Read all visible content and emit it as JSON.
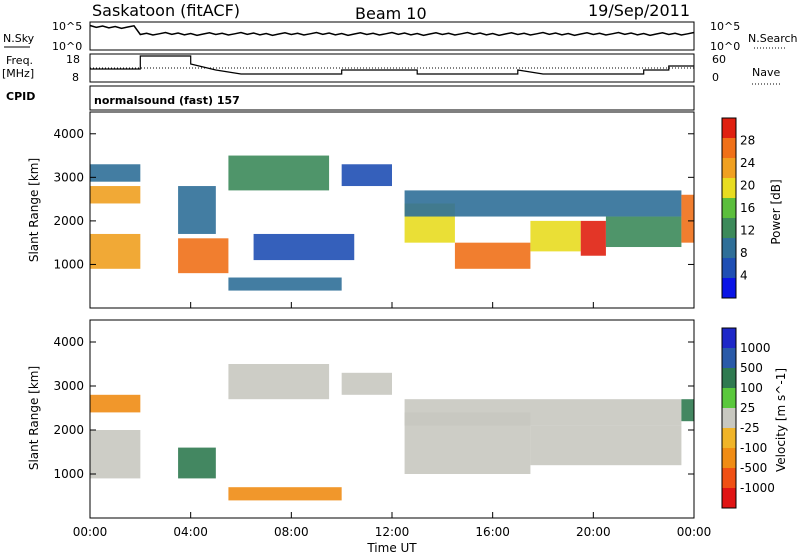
{
  "header": {
    "station": "Saskatoon (fitACF)",
    "beam": "Beam 10",
    "date": "19/Sep/2011"
  },
  "top_panels": {
    "nsky_label": "N.Sky",
    "nsky_ticks": [
      "10^5",
      "10^0"
    ],
    "nsearch_label": "N.Search",
    "nsearch_ticks": [
      "10^5",
      "10^0"
    ],
    "freq_label_1": "Freq.",
    "freq_label_2": "[MHz]",
    "freq_ticks": [
      "18",
      "8"
    ],
    "nave_label": "Nave",
    "nave_ticks": [
      "60",
      "0"
    ],
    "cpid_label": "CPID",
    "cpid_text": "normalsound (fast) 157"
  },
  "colors": {
    "power_scale": [
      "#0a14e6",
      "#1f4fb4",
      "#2f6f98",
      "#3c8a5a",
      "#5bbe3c",
      "#e8dc20",
      "#f0a020",
      "#f07018",
      "#e02010"
    ],
    "velocity_scale": [
      "#1e28c8",
      "#2a5aa8",
      "#2f7a50",
      "#5ac83c",
      "#c8c8c0",
      "#f0b428",
      "#f08c14",
      "#f05014",
      "#e01414"
    ]
  },
  "chart_data": [
    {
      "type": "heatmap",
      "name": "power",
      "xlabel": "",
      "ylabel": "Slant Range [km]",
      "ylim": [
        0,
        4500
      ],
      "yticks": [
        "1000",
        "2000",
        "3000",
        "4000"
      ],
      "colorbar_label": "Power [dB]",
      "colorbar_ticks": [
        "28",
        "24",
        "20",
        "16",
        "12",
        "8",
        "4"
      ],
      "clim": [
        0,
        32
      ],
      "regions": [
        {
          "x0": 0.0,
          "x1": 2.0,
          "y0": 900,
          "y1": 1700,
          "v": 24
        },
        {
          "x0": 0.0,
          "x1": 2.0,
          "y0": 2400,
          "y1": 2800,
          "v": 22
        },
        {
          "x0": 0.0,
          "x1": 2.0,
          "y0": 2900,
          "y1": 3300,
          "v": 10
        },
        {
          "x0": 3.5,
          "x1": 5.5,
          "y0": 800,
          "y1": 1600,
          "v": 26
        },
        {
          "x0": 3.5,
          "x1": 5.0,
          "y0": 1700,
          "y1": 2800,
          "v": 8
        },
        {
          "x0": 5.5,
          "x1": 9.5,
          "y0": 2700,
          "y1": 3500,
          "v": 12
        },
        {
          "x0": 5.5,
          "x1": 10.0,
          "y0": 400,
          "y1": 700,
          "v": 10
        },
        {
          "x0": 6.5,
          "x1": 10.5,
          "y0": 1100,
          "y1": 1700,
          "v": 7
        },
        {
          "x0": 10.0,
          "x1": 12.0,
          "y0": 2800,
          "y1": 3300,
          "v": 7
        },
        {
          "x0": 12.5,
          "x1": 14.5,
          "y0": 1500,
          "y1": 2400,
          "v": 20
        },
        {
          "x0": 14.5,
          "x1": 17.5,
          "y0": 900,
          "y1": 1500,
          "v": 26
        },
        {
          "x0": 17.5,
          "x1": 19.5,
          "y0": 1300,
          "y1": 2000,
          "v": 18
        },
        {
          "x0": 19.5,
          "x1": 20.5,
          "y0": 1200,
          "y1": 2000,
          "v": 30
        },
        {
          "x0": 20.5,
          "x1": 23.5,
          "y0": 1400,
          "y1": 2100,
          "v": 14
        },
        {
          "x0": 12.5,
          "x1": 23.5,
          "y0": 2100,
          "y1": 2700,
          "v": 10
        },
        {
          "x0": 23.5,
          "x1": 24.0,
          "y0": 1500,
          "y1": 2600,
          "v": 28
        }
      ]
    },
    {
      "type": "heatmap",
      "name": "velocity",
      "xlabel": "Time UT",
      "ylabel": "Slant Range [km]",
      "ylim": [
        0,
        4500
      ],
      "yticks": [
        "1000",
        "2000",
        "3000",
        "4000"
      ],
      "xticks": [
        "00:00",
        "04:00",
        "08:00",
        "12:00",
        "16:00",
        "20:00",
        "00:00"
      ],
      "xlim": [
        0,
        24
      ],
      "colorbar_label": "Velocity [m s^-1]",
      "colorbar_ticks": [
        "1000",
        "500",
        "100",
        "25",
        "-25",
        "-100",
        "-500",
        "-1000"
      ],
      "regions": [
        {
          "x0": 0.0,
          "x1": 2.0,
          "y0": 900,
          "y1": 2000,
          "v": 0
        },
        {
          "x0": 0.0,
          "x1": 2.0,
          "y0": 2400,
          "y1": 2800,
          "v": -200
        },
        {
          "x0": 3.5,
          "x1": 5.0,
          "y0": 900,
          "y1": 1600,
          "v": 150
        },
        {
          "x0": 5.5,
          "x1": 9.5,
          "y0": 2700,
          "y1": 3500,
          "v": 0
        },
        {
          "x0": 5.5,
          "x1": 10.0,
          "y0": 400,
          "y1": 700,
          "v": -150
        },
        {
          "x0": 10.0,
          "x1": 12.0,
          "y0": 2800,
          "y1": 3300,
          "v": 0
        },
        {
          "x0": 12.5,
          "x1": 17.5,
          "y0": 1000,
          "y1": 2400,
          "v": 0
        },
        {
          "x0": 17.5,
          "x1": 23.5,
          "y0": 1200,
          "y1": 2100,
          "v": 0
        },
        {
          "x0": 12.5,
          "x1": 23.5,
          "y0": 2100,
          "y1": 2700,
          "v": 0
        },
        {
          "x0": 23.5,
          "x1": 24.0,
          "y0": 2200,
          "y1": 2700,
          "v": 150
        }
      ]
    }
  ]
}
